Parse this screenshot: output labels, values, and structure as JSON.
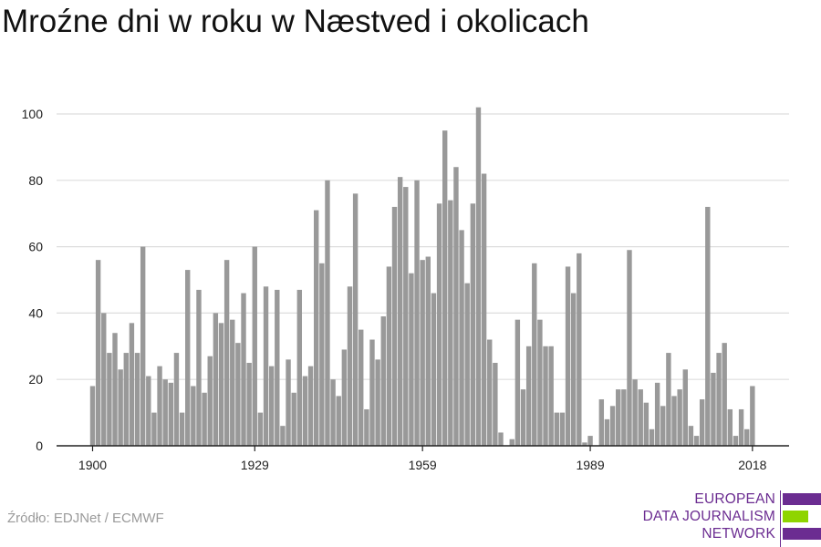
{
  "title": "Mroźne dni w roku w Næstved i okolicach",
  "source": "Źródło: EDJNet / ECMWF",
  "logo": {
    "lines": [
      "EUROPEAN",
      "DATA JOURNALISM",
      "NETWORK"
    ],
    "colors": {
      "text": "#6b2c91",
      "bar_purple": "#6b2c91",
      "bar_green": "#8fd400"
    }
  },
  "colors": {
    "bar": "#999999",
    "grid": "#dddddd",
    "axis": "#222222",
    "text": "#222222"
  },
  "chart_data": {
    "type": "bar",
    "x_start": 1900,
    "x_end": 2018,
    "xticks": [
      1900,
      1929,
      1959,
      1989,
      2018
    ],
    "ylim": [
      0,
      100
    ],
    "yticks": [
      0,
      20,
      40,
      60,
      80,
      100
    ],
    "grid": true,
    "title": "Mroźne dni w roku w Næstved i okolicach",
    "values": [
      18,
      56,
      40,
      28,
      34,
      23,
      28,
      37,
      28,
      60,
      21,
      10,
      24,
      20,
      19,
      28,
      10,
      53,
      18,
      47,
      16,
      27,
      40,
      37,
      56,
      38,
      31,
      46,
      25,
      60,
      10,
      48,
      24,
      47,
      6,
      26,
      16,
      47,
      21,
      24,
      71,
      55,
      80,
      20,
      15,
      29,
      48,
      76,
      35,
      11,
      32,
      26,
      39,
      54,
      72,
      81,
      78,
      52,
      80,
      56,
      57,
      46,
      73,
      95,
      74,
      84,
      65,
      49,
      73,
      102,
      82,
      32,
      25,
      4,
      0,
      2,
      38,
      17,
      30,
      55,
      38,
      30,
      30,
      10,
      10,
      54,
      46,
      58,
      1,
      3,
      0,
      14,
      8,
      12,
      17,
      17,
      59,
      20,
      17,
      13,
      5,
      19,
      12,
      28,
      15,
      17,
      23,
      6,
      3,
      14,
      72,
      22,
      28,
      31,
      11,
      3,
      11,
      5,
      18
    ]
  }
}
